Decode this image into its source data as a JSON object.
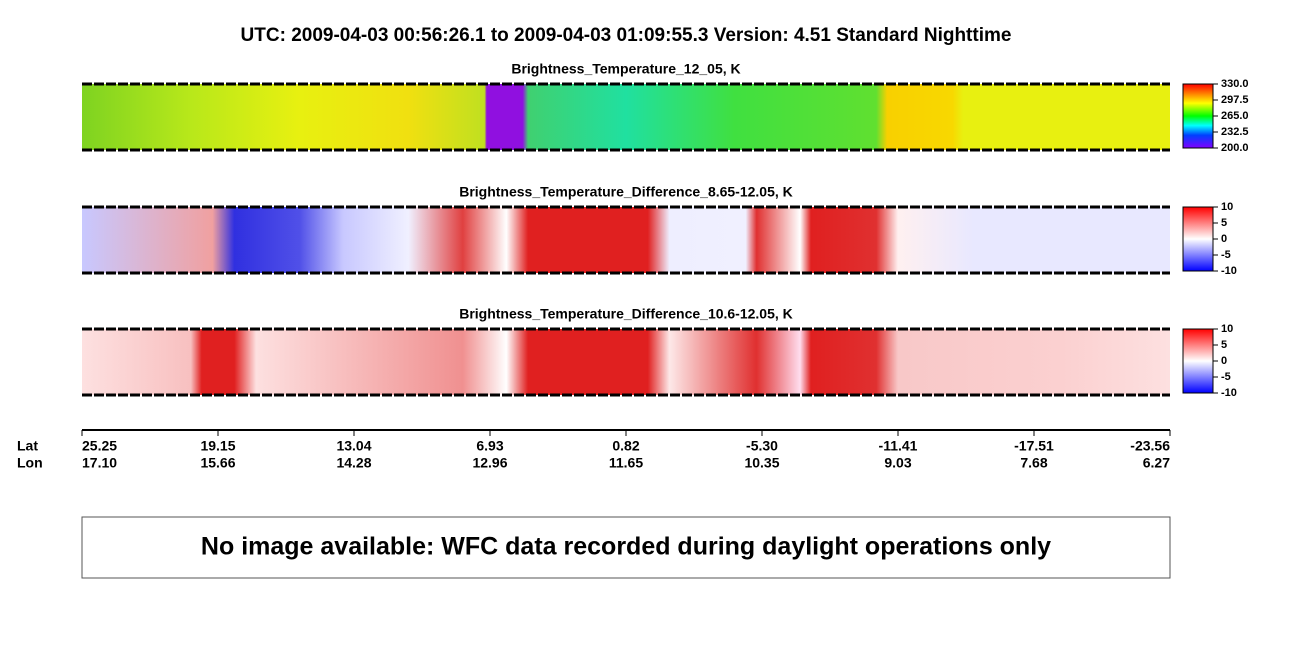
{
  "title": "UTC:  2009-04-03   00:56:26.1  to  2009-04-03   01:09:55.3    Version: 4.51  Standard Nighttime",
  "panels": [
    {
      "title": "Brightness_Temperature_12_05, K",
      "colorbar_ticks": [
        "330.0",
        "297.5",
        "265.0",
        "232.5",
        "200.0"
      ]
    },
    {
      "title": "Brightness_Temperature_Difference_8.65-12.05, K",
      "colorbar_ticks": [
        "10",
        "5",
        "0",
        "-5",
        "-10"
      ]
    },
    {
      "title": "Brightness_Temperature_Difference_10.6-12.05, K",
      "colorbar_ticks": [
        "10",
        "5",
        "0",
        "-5",
        "-10"
      ]
    }
  ],
  "axis": {
    "lat_label": "Lat",
    "lon_label": "Lon",
    "lat": [
      "25.25",
      "19.15",
      "13.04",
      "6.93",
      "0.82",
      "-5.30",
      "-11.41",
      "-17.51",
      "-23.56"
    ],
    "lon": [
      "17.10",
      "15.66",
      "14.28",
      "12.96",
      "11.65",
      "10.35",
      "9.03",
      "7.68",
      "6.27"
    ]
  },
  "notice": "No image available: WFC data recorded during daylight operations only"
}
